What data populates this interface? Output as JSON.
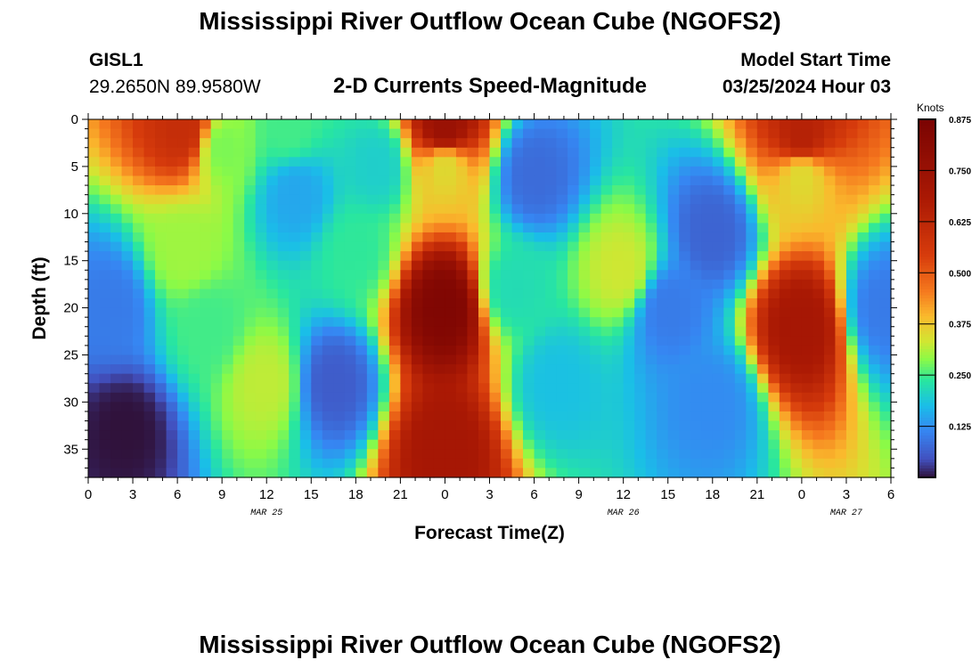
{
  "header": {
    "title": "Mississippi River Outflow Ocean Cube (NGOFS2)",
    "station_id": "GISL1",
    "station_coords": "29.2650N  89.9580W",
    "subtitle": "2-D Currents Speed-Magnitude",
    "model_start_label": "Model Start Time",
    "model_start_value": "03/25/2024 Hour 03"
  },
  "footer": {
    "title": "Mississippi River Outflow Ocean Cube (NGOFS2)"
  },
  "chart_data": {
    "type": "heatmap",
    "title": "2-D Currents Speed-Magnitude",
    "xlabel": "Forecast Time(Z)",
    "ylabel": "Depth (ft)",
    "x_range_hours": [
      0,
      54
    ],
    "x_tick_labels": [
      "0",
      "3",
      "6",
      "9",
      "12",
      "15",
      "18",
      "21",
      "0",
      "3",
      "6",
      "9",
      "12",
      "15",
      "18",
      "21",
      "0",
      "3",
      "6"
    ],
    "date_labels": [
      {
        "label": "MAR 25",
        "hour": 12
      },
      {
        "label": "MAR 26",
        "hour": 36
      },
      {
        "label": "MAR 27",
        "hour": 51
      }
    ],
    "y_range_ft": [
      0,
      38
    ],
    "y_ticks": [
      0,
      5,
      10,
      15,
      20,
      25,
      30,
      35
    ],
    "y_inverted": true,
    "colorbar": {
      "unit": "Knots",
      "min": 0,
      "max": 0.875,
      "ticks": [
        "0.875",
        "0.750",
        "0.625",
        "0.500",
        "0.375",
        "0.250",
        "0.125"
      ],
      "tick_values": [
        0.875,
        0.75,
        0.625,
        0.5,
        0.375,
        0.25,
        0.125
      ]
    },
    "field_centers": [
      {
        "hour": 1.5,
        "depth": 20,
        "speed": 0.1
      },
      {
        "hour": 2.5,
        "depth": 33,
        "speed": 0.0
      },
      {
        "hour": 6.5,
        "depth": 1,
        "speed": 0.6
      },
      {
        "hour": 6.5,
        "depth": 14,
        "speed": 0.3
      },
      {
        "hour": 8,
        "depth": 22,
        "speed": 0.25
      },
      {
        "hour": 12,
        "depth": 28,
        "speed": 0.32
      },
      {
        "hour": 9,
        "depth": 3,
        "speed": 0.28
      },
      {
        "hour": 13.5,
        "depth": 1,
        "speed": 0.25
      },
      {
        "hour": 14,
        "depth": 8,
        "speed": 0.15
      },
      {
        "hour": 16.5,
        "depth": 28,
        "speed": 0.06
      },
      {
        "hour": 18,
        "depth": 14,
        "speed": 0.24
      },
      {
        "hour": 19.5,
        "depth": 5,
        "speed": 0.2
      },
      {
        "hour": 24,
        "depth": 1,
        "speed": 0.75
      },
      {
        "hour": 24,
        "depth": 5,
        "speed": 0.35
      },
      {
        "hour": 24,
        "depth": 20,
        "speed": 0.85
      },
      {
        "hour": 24,
        "depth": 35,
        "speed": 0.7
      },
      {
        "hour": 28.5,
        "depth": 18,
        "speed": 0.22
      },
      {
        "hour": 30,
        "depth": 6,
        "speed": 0.08
      },
      {
        "hour": 31.5,
        "depth": 28,
        "speed": 0.18
      },
      {
        "hour": 36,
        "depth": 16,
        "speed": 0.33
      },
      {
        "hour": 39,
        "depth": 20,
        "speed": 0.1
      },
      {
        "hour": 42,
        "depth": 12,
        "speed": 0.07
      },
      {
        "hour": 42,
        "depth": 30,
        "speed": 0.12
      },
      {
        "hour": 48,
        "depth": 2,
        "speed": 0.65
      },
      {
        "hour": 48,
        "depth": 6,
        "speed": 0.35
      },
      {
        "hour": 48,
        "depth": 22,
        "speed": 0.7
      },
      {
        "hour": 53.5,
        "depth": 20,
        "speed": 0.1
      }
    ],
    "grid": false
  }
}
